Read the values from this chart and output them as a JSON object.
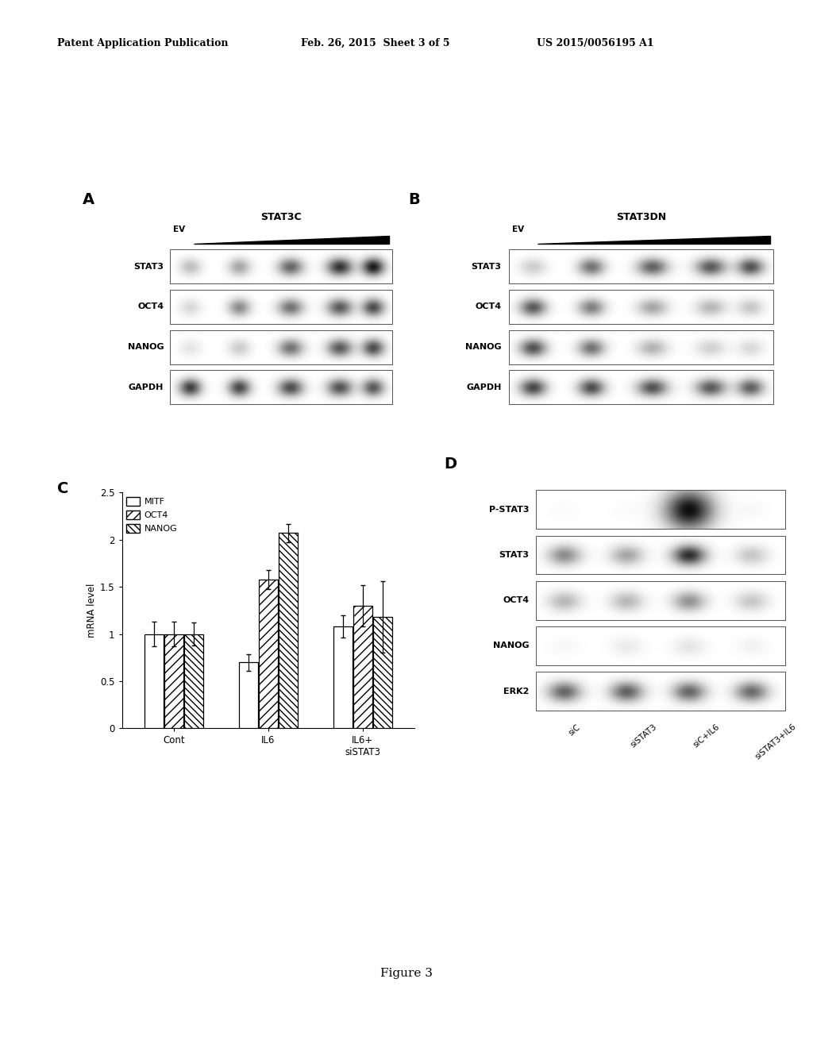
{
  "header_left": "Patent Application Publication",
  "header_center": "Feb. 26, 2015  Sheet 3 of 5",
  "header_right": "US 2015/0056195 A1",
  "panel_A_label": "A",
  "panel_A_title": "STAT3C",
  "panel_A_ev_label": "EV",
  "panel_A_rows": [
    "STAT3",
    "OCT4",
    "NANOG",
    "GAPDH"
  ],
  "panel_B_label": "B",
  "panel_B_title": "STAT3DN",
  "panel_B_ev_label": "EV",
  "panel_B_rows": [
    "STAT3",
    "OCT4",
    "NANOG",
    "GAPDH"
  ],
  "panel_C_label": "C",
  "panel_C_ylabel": "mRNA level",
  "panel_C_yticks": [
    0,
    0.5,
    1,
    1.5,
    2,
    2.5
  ],
  "panel_C_groups": [
    "Cont",
    "IL6",
    "IL6+\nsiSTAT3"
  ],
  "panel_C_legend": [
    "MITF",
    "OCT4",
    "NANOG"
  ],
  "panel_C_data": {
    "MITF": [
      1.0,
      0.7,
      1.08
    ],
    "OCT4": [
      1.0,
      1.58,
      1.3
    ],
    "NANOG": [
      1.0,
      2.07,
      1.18
    ]
  },
  "panel_C_errors": {
    "MITF": [
      0.13,
      0.09,
      0.12
    ],
    "OCT4": [
      0.13,
      0.1,
      0.22
    ],
    "NANOG": [
      0.12,
      0.1,
      0.38
    ]
  },
  "panel_D_label": "D",
  "panel_D_rows": [
    "P-STAT3",
    "STAT3",
    "OCT4",
    "NANOG",
    "ERK2"
  ],
  "panel_D_cols": [
    "siC",
    "siSTAT3",
    "siC+IL6",
    "siSTAT3+IL6"
  ],
  "figure_caption": "Figure 3",
  "bg_color": "#ffffff",
  "text_color": "#000000"
}
